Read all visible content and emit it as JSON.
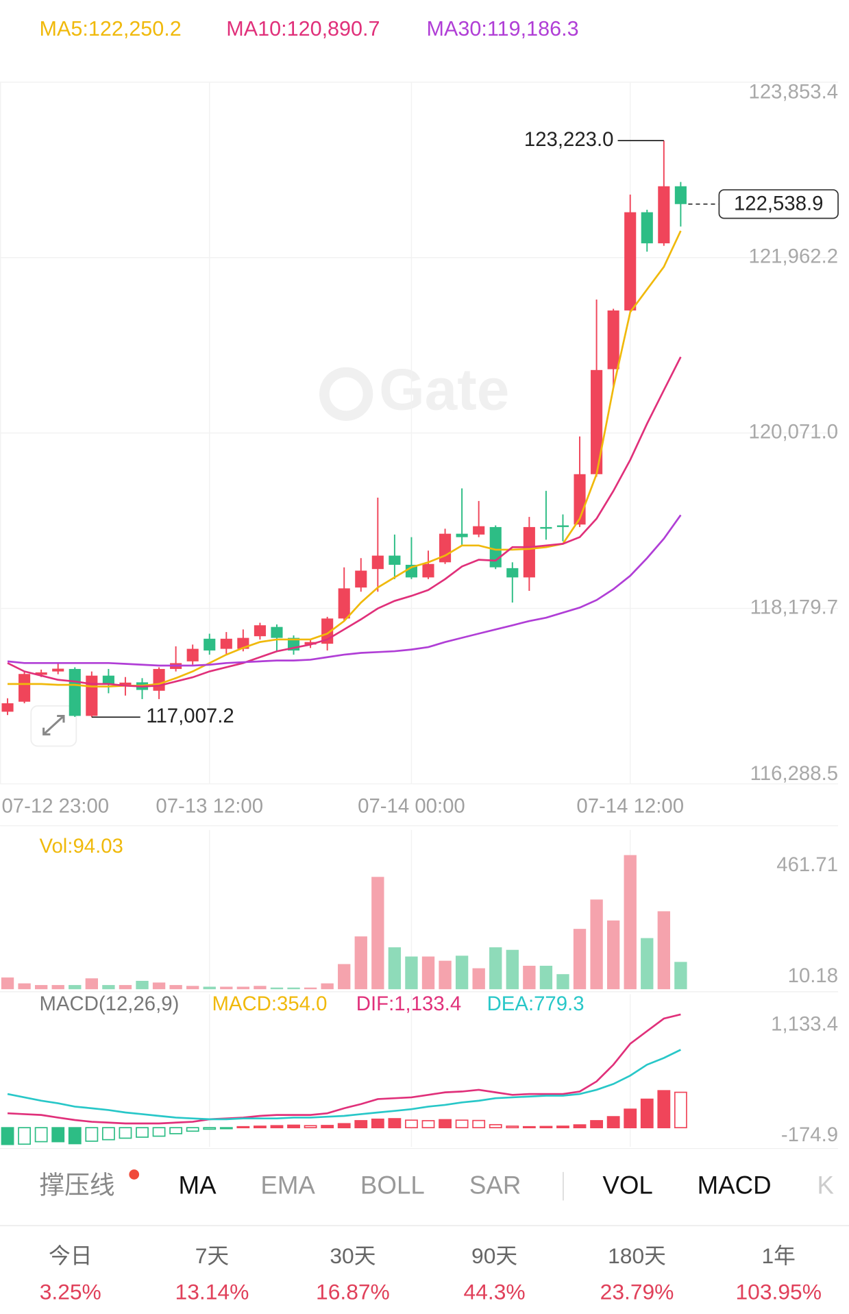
{
  "chart_data": [
    {
      "type": "candlestick",
      "categories": [
        "07-12 23:00",
        null,
        null,
        null,
        null,
        null,
        null,
        null,
        null,
        null,
        null,
        null,
        "07-13 12:00",
        null,
        null,
        null,
        null,
        null,
        null,
        null,
        null,
        null,
        null,
        null,
        "07-14 00:00",
        null,
        null,
        null,
        null,
        null,
        null,
        null,
        null,
        null,
        null,
        null,
        null,
        "07-14 12:00",
        null,
        null,
        null
      ],
      "open": [
        117066,
        117174,
        117464,
        117500,
        117527,
        117021,
        117455,
        117350,
        117383,
        117292,
        117527,
        117609,
        117853,
        117744,
        117744,
        117880,
        117980,
        117862,
        117790,
        117799,
        118071,
        118405,
        118604,
        118749,
        118650,
        118514,
        118677,
        118985,
        118976,
        119057,
        118614,
        118514,
        119057,
        119075,
        119084,
        119627,
        120759,
        121392,
        122451,
        122116,
        122731
      ],
      "high": [
        117211,
        117500,
        117520,
        117590,
        117545,
        117500,
        117527,
        117440,
        117428,
        117545,
        117771,
        117790,
        117907,
        117925,
        117953,
        118025,
        118007,
        117889,
        117844,
        118089,
        118622,
        118722,
        119374,
        118976,
        118948,
        118803,
        119039,
        119474,
        119338,
        119075,
        118677,
        119166,
        119447,
        119193,
        120034,
        121510,
        121410,
        122641,
        122478,
        123223.0,
        122777
      ],
      "low": [
        117030,
        117157,
        117440,
        117470,
        117010,
        117007.2,
        117265,
        117240,
        117202,
        117202,
        117500,
        117573,
        117681,
        117681,
        117717,
        117844,
        117726,
        117681,
        117753,
        117726,
        118044,
        118360,
        118360,
        118496,
        118496,
        118496,
        118659,
        118858,
        118948,
        118604,
        118243,
        118369,
        118921,
        118903,
        119057,
        119600,
        120559,
        121374,
        122026,
        122089,
        122297
      ],
      "close": [
        117157,
        117473,
        117490,
        117530,
        117021,
        117455,
        117364,
        117380,
        117301,
        117527,
        117590,
        117744,
        117726,
        117853,
        117862,
        117998,
        117862,
        117726,
        117817,
        118071,
        118396,
        118587,
        118749,
        118650,
        118514,
        118659,
        118985,
        118948,
        119066,
        118623,
        118514,
        119057,
        119039,
        119057,
        119627,
        120750,
        121392,
        122451,
        122116,
        122731,
        122538.9
      ],
      "up_color": "#f0455a",
      "down_color": "#2dbd85",
      "series": [
        {
          "name": "MA5:122,250.2",
          "color": "#f0b90b",
          "values": [
            117364.8,
            117364.8,
            117364.8,
            117355.8,
            117355.8,
            117337.7,
            117337.7,
            117346.7,
            117346.7,
            117364.8,
            117428.2,
            117500.6,
            117591.1,
            117681.6,
            117754.1,
            117817.4,
            117844.6,
            117844.6,
            117844.6,
            117907.9,
            118043.6,
            118242.7,
            118405.6,
            118514.2,
            118622.8,
            118677.1,
            118749.6,
            118858.1,
            118858.1,
            118812.8,
            118812.8,
            118821.9,
            118840.0,
            118876.2,
            119147.7,
            119627.3,
            120559.5,
            121374.0,
            121618.3,
            121862.6,
            122250.2
          ]
        },
        {
          "name": "MA10:120,890.7",
          "color": "#e0307a",
          "values": [
            117591.1,
            117500.6,
            117455.3,
            117410.0,
            117391.9,
            117364.8,
            117364.8,
            117346.7,
            117337.7,
            117346.7,
            117391.9,
            117437.2,
            117500.6,
            117545.8,
            117591.1,
            117654.4,
            117717.8,
            117754.1,
            117790.2,
            117844.6,
            117953.2,
            118061.6,
            118179.3,
            118260.8,
            118315.0,
            118378.4,
            118496.0,
            118631.8,
            118704.2,
            118695.2,
            118840.0,
            118840.0,
            118858.1,
            118876.2,
            118948.6,
            119147.7,
            119446.3,
            119781.3,
            120170.3,
            120532.3,
            120890.7
          ]
        },
        {
          "name": "MA30:119,186.3",
          "color": "#b03ed6",
          "values": [
            117609,
            117591,
            117591,
            117591,
            117591,
            117591,
            117591,
            117582,
            117573,
            117564,
            117564,
            117564,
            117573,
            117591,
            117600,
            117609,
            117618,
            117618,
            117627,
            117654,
            117681,
            117700,
            117709,
            117718,
            117736,
            117763,
            117817,
            117863,
            117908,
            117953,
            117998,
            118044,
            118080,
            118134,
            118188,
            118270,
            118387,
            118532,
            118722,
            118931,
            119186.3
          ]
        }
      ],
      "ylim": [
        116288.5,
        123853.4
      ],
      "yticks": [
        {
          "value": 116288.5,
          "label": "116,288.5"
        },
        {
          "value": 118179.7,
          "label": "118,179.7"
        },
        {
          "value": 120071.0,
          "label": "120,071.0"
        },
        {
          "value": 121962.2,
          "label": "121,962.2"
        },
        {
          "value": 123853.4,
          "label": "123,853.4"
        }
      ],
      "grid": true,
      "annotations": [
        {
          "value": 123223.0,
          "label": "123,223.0"
        },
        {
          "value": 117007.2,
          "label": "117,007.2"
        },
        {
          "value": 122538.9,
          "label": "122,538.9"
        }
      ],
      "watermark": "Gate"
    },
    {
      "type": "bar",
      "title": "Vol:94.03",
      "values": [
        40.4,
        20.2,
        14.4,
        14.4,
        14.4,
        37.5,
        14.4,
        14.4,
        28.9,
        23.1,
        14.4,
        11.5,
        8.7,
        8.7,
        8.7,
        11.5,
        5.8,
        5.8,
        5.8,
        20.2,
        86.6,
        181.8,
        386.7,
        144.3,
        112.6,
        112.6,
        98.1,
        115.4,
        72.2,
        144.3,
        135.6,
        80.8,
        80.8,
        51.9,
        207.8,
        308.8,
        236.7,
        461.71,
        176.0,
        268.4,
        94.03
      ],
      "up_color": "#f5a3ad",
      "down_color": "#8edbb9",
      "title_color": "#f0b90b",
      "ylim": [
        0,
        461.71
      ],
      "yticks": [
        10.18,
        461.71
      ]
    },
    {
      "type": "macd",
      "title": "MACD(12,26,9)",
      "series": [
        {
          "name": "MACD:354.0",
          "color": "#f0b90b",
          "values": [
            -168,
            -165,
            -140,
            -140,
            -160,
            -135,
            -120,
            -105,
            -95,
            -85,
            -60,
            -35,
            -15,
            -10,
            10,
            15,
            20,
            25,
            20,
            22,
            40,
            70,
            85,
            90,
            75,
            70,
            80,
            75,
            72,
            30,
            15,
            10,
            12,
            15,
            28,
            70,
            110,
            185,
            285,
            370,
            354.0
          ]
        },
        {
          "name": "DIF:1,133.4",
          "color": "#e0307a",
          "values": [
            143.4,
            135.0,
            126.6,
            101.4,
            76.3,
            59.5,
            51.1,
            42.7,
            42.7,
            42.7,
            51.1,
            59.5,
            84.6,
            93.0,
            101.4,
            118.2,
            126.6,
            126.6,
            126.6,
            143.4,
            193.7,
            235.7,
            286.0,
            294.4,
            302.8,
            328.0,
            353.1,
            361.5,
            378.3,
            353.1,
            328.0,
            336.4,
            336.4,
            336.4,
            361.5,
            462.2,
            630.0,
            839.7,
            965.6,
            1091.4,
            1133.4
          ]
        },
        {
          "name": "DEA:779.3",
          "color": "#28c7c8",
          "values": [
            336.4,
            302.8,
            269.2,
            244.1,
            210.5,
            193.7,
            176.9,
            151.8,
            135.0,
            118.2,
            101.4,
            93.0,
            84.6,
            84.6,
            93.0,
            93.0,
            93.0,
            101.4,
            101.4,
            109.8,
            118.2,
            135.0,
            151.8,
            168.5,
            185.3,
            210.5,
            227.3,
            252.4,
            269.2,
            294.4,
            302.8,
            311.2,
            319.6,
            319.6,
            336.4,
            378.3,
            437.0,
            520.9,
            630.0,
            697.1,
            779.3
          ]
        }
      ],
      "up_color": "#f0455a",
      "down_color": "#2dbd85",
      "ylim": [
        -174.9,
        1133.4
      ],
      "yticks": [
        -174.9,
        {
          "value": 1133.4,
          "label": "1,133.4"
        }
      ]
    }
  ],
  "indicator_tabs": [
    "撑压线",
    "MA",
    "EMA",
    "BOLL",
    "SAR",
    "VOL",
    "MACD",
    "K"
  ],
  "period_returns": [
    {
      "period": "今日",
      "change": "3.25%"
    },
    {
      "period": "7天",
      "change": "13.14%"
    },
    {
      "period": "30天",
      "change": "16.87%"
    },
    {
      "period": "90天",
      "change": "44.3%"
    },
    {
      "period": "180天",
      "change": "23.79%"
    },
    {
      "period": "1年",
      "change": "103.95%"
    }
  ]
}
